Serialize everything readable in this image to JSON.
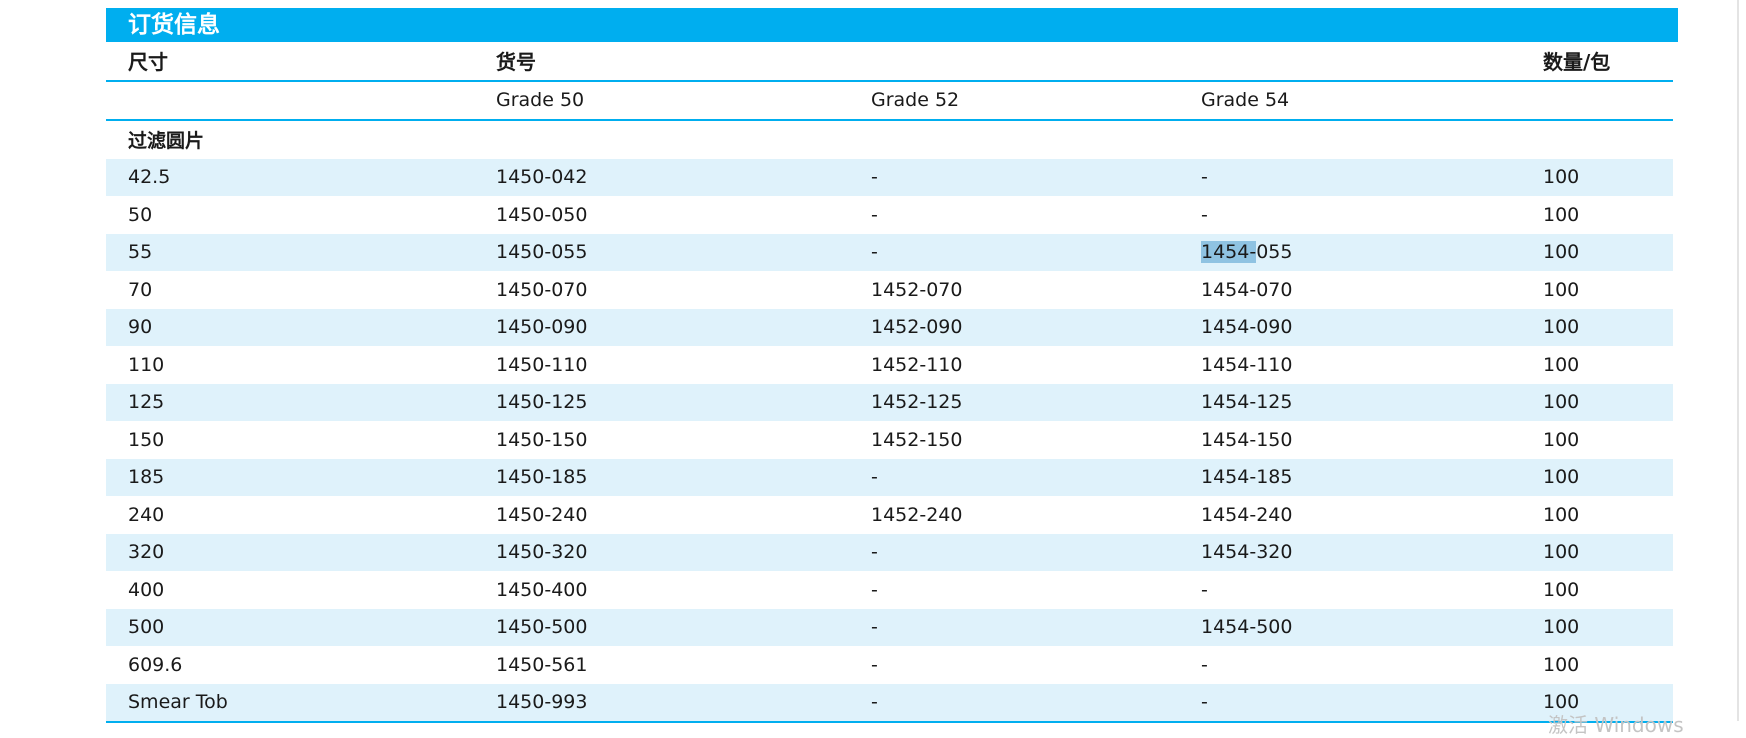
{
  "title": "订货信息",
  "header": {
    "size": "尺寸",
    "catalog": "货号",
    "qty": "数量/包"
  },
  "grades": [
    "Grade 50",
    "Grade 52",
    "Grade 54"
  ],
  "section": "过滤圆片",
  "rows": [
    {
      "size": "42.5",
      "g50": "1450-042",
      "g52": "-",
      "g54": "-",
      "qty": "100"
    },
    {
      "size": "50",
      "g50": "1450-050",
      "g52": "-",
      "g54": "-",
      "qty": "100"
    },
    {
      "size": "55",
      "g50": "1450-055",
      "g52": "-",
      "g54": "1454-055",
      "qty": "100"
    },
    {
      "size": "70",
      "g50": "1450-070",
      "g52": "1452-070",
      "g54": "1454-070",
      "qty": "100"
    },
    {
      "size": "90",
      "g50": "1450-090",
      "g52": "1452-090",
      "g54": "1454-090",
      "qty": "100"
    },
    {
      "size": "110",
      "g50": "1450-110",
      "g52": "1452-110",
      "g54": "1454-110",
      "qty": "100"
    },
    {
      "size": "125",
      "g50": "1450-125",
      "g52": "1452-125",
      "g54": "1454-125",
      "qty": "100"
    },
    {
      "size": "150",
      "g50": "1450-150",
      "g52": "1452-150",
      "g54": "1454-150",
      "qty": "100"
    },
    {
      "size": "185",
      "g50": "1450-185",
      "g52": "-",
      "g54": "1454-185",
      "qty": "100"
    },
    {
      "size": "240",
      "g50": "1450-240",
      "g52": "1452-240",
      "g54": "1454-240",
      "qty": "100"
    },
    {
      "size": "320",
      "g50": "1450-320",
      "g52": "-",
      "g54": "1454-320",
      "qty": "100"
    },
    {
      "size": "400",
      "g50": "1450-400",
      "g52": "-",
      "g54": "-",
      "qty": "100"
    },
    {
      "size": "500",
      "g50": "1450-500",
      "g52": "-",
      "g54": "1454-500",
      "qty": "100"
    },
    {
      "size": "609.6",
      "g50": "1450-561",
      "g52": "-",
      "g54": "-",
      "qty": "100"
    },
    {
      "size": "Smear Tob",
      "g50": "1450-993",
      "g52": "-",
      "g54": "-",
      "qty": "100"
    }
  ],
  "selection": {
    "row_index": 2,
    "selected_text": "1454-",
    "rest_text": "055"
  },
  "watermark": "激活 Windows",
  "colors": {
    "accent": "#00aeef",
    "row_shade": "#dff2fb",
    "selection": "#8fc3e2"
  }
}
